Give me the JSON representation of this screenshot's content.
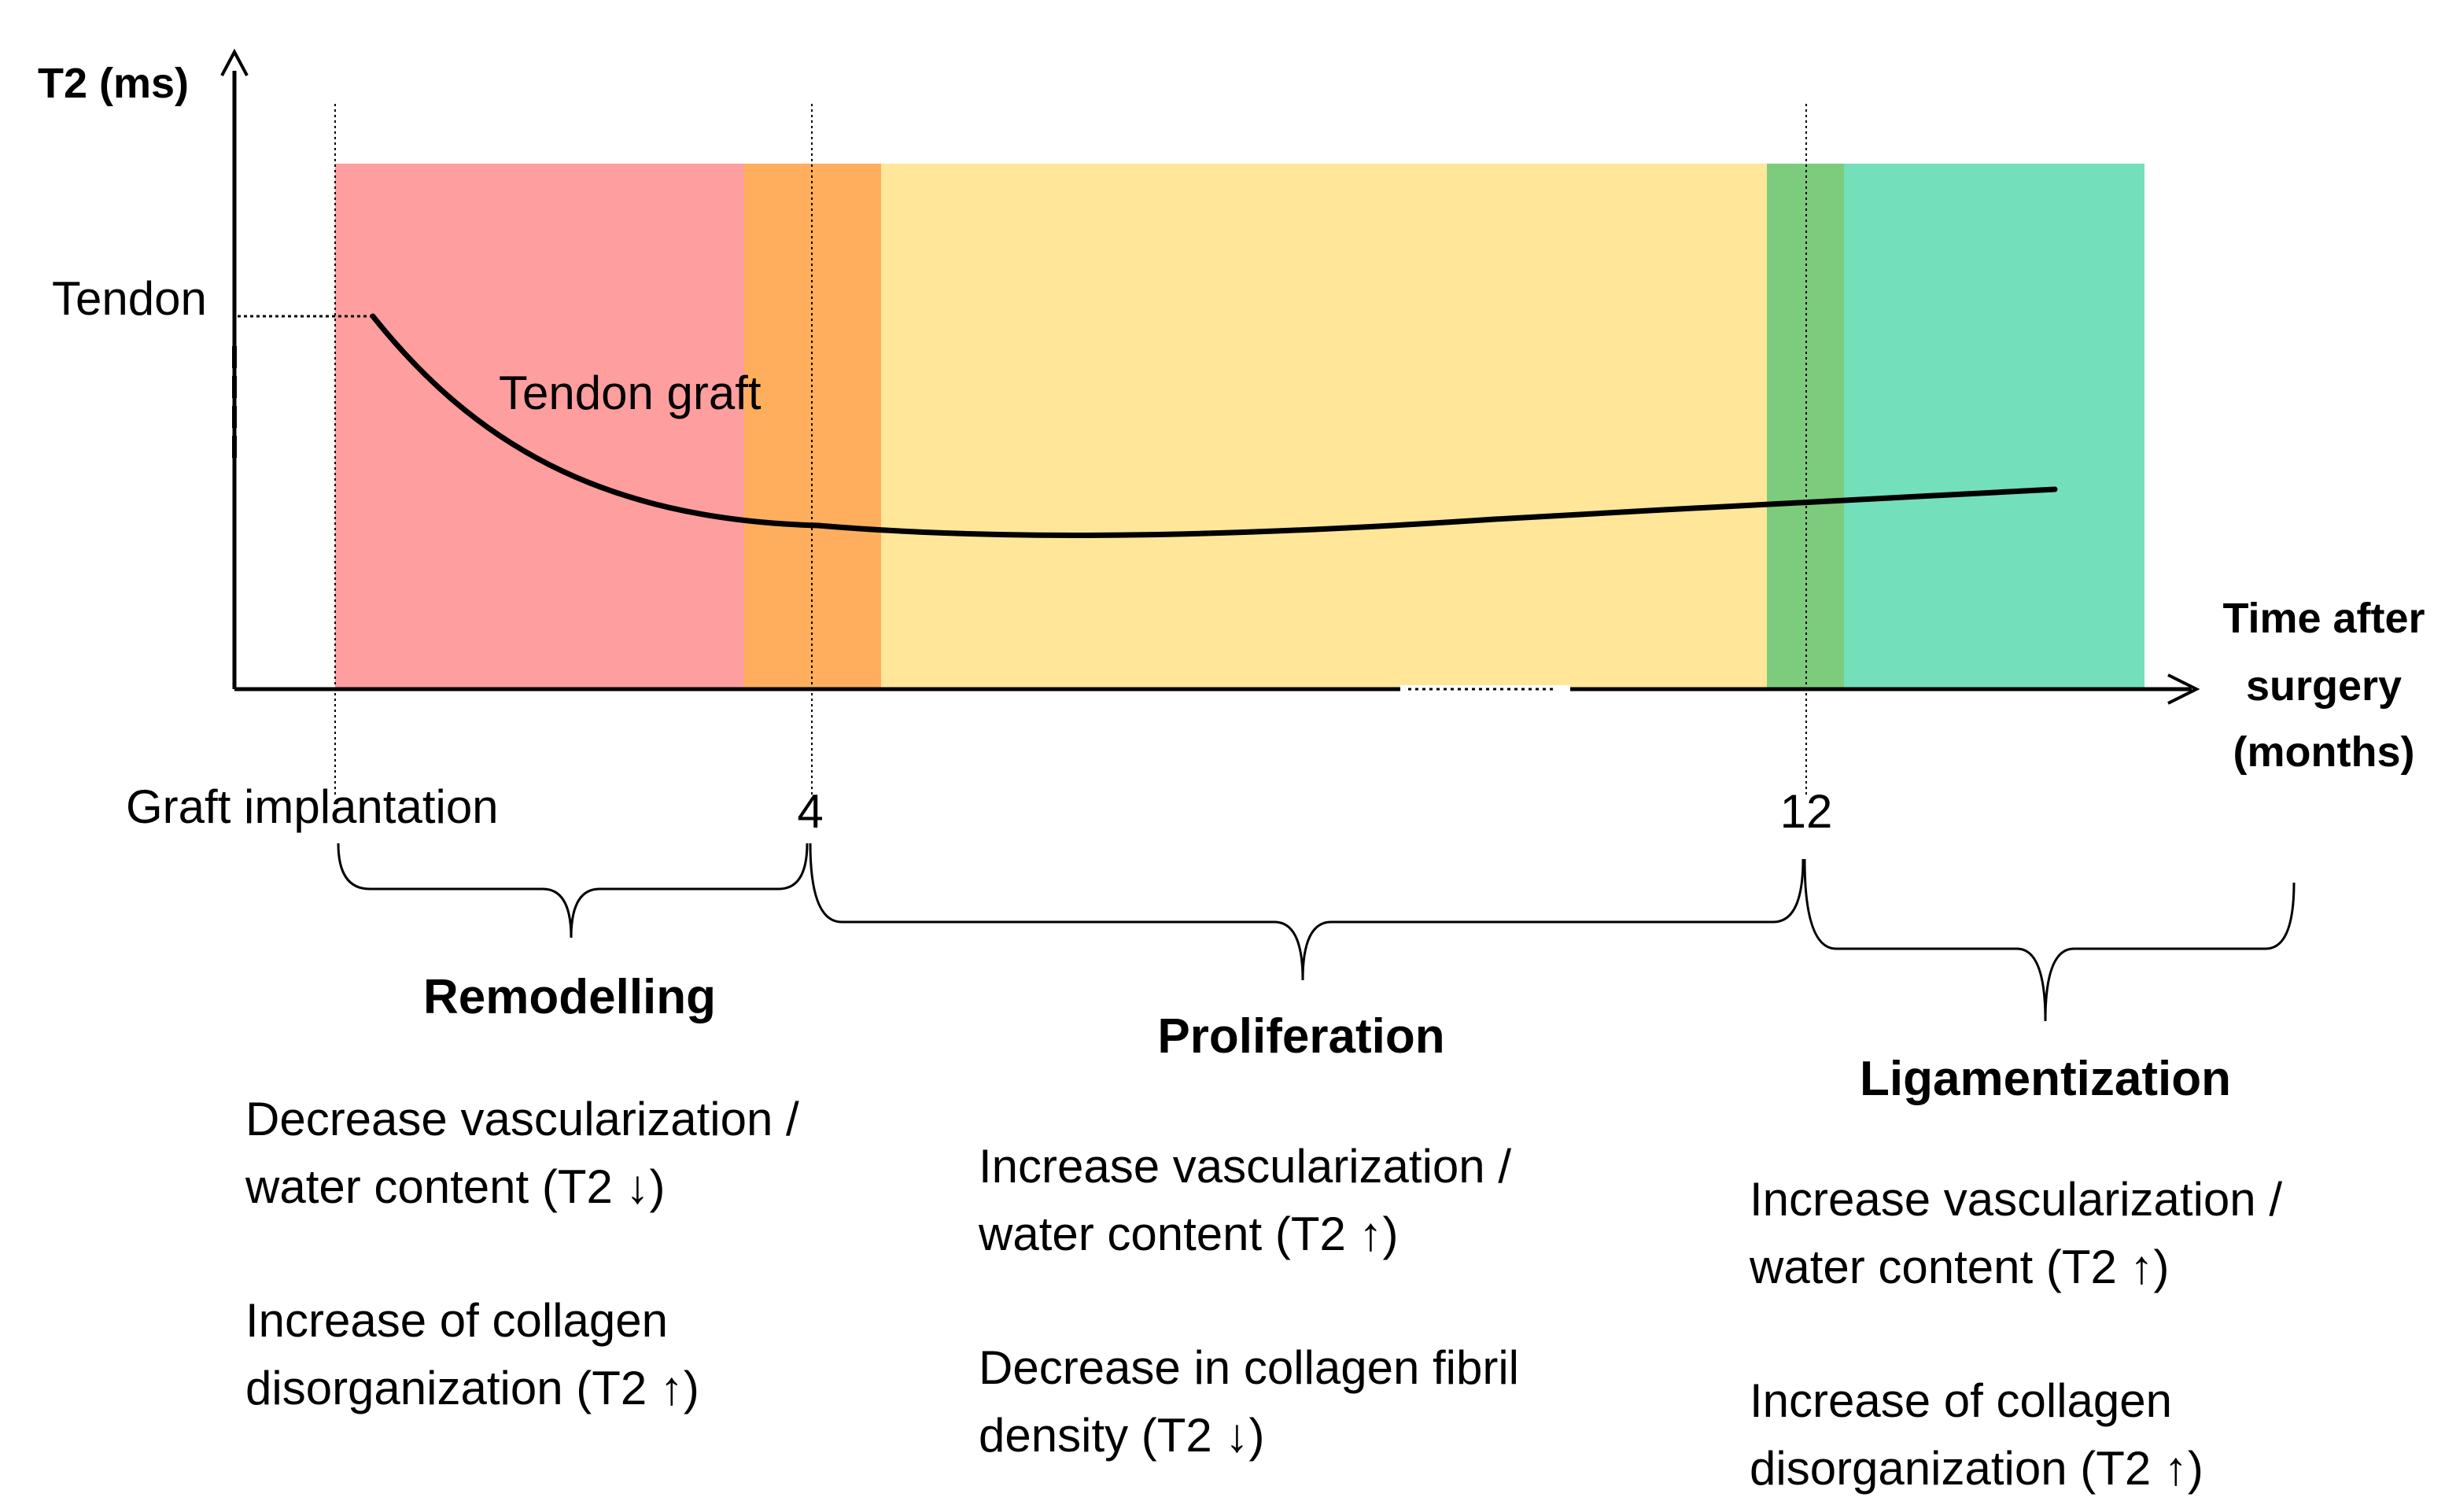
{
  "axes": {
    "y_title": "T2 (ms)",
    "y_tick_label": "Tendon",
    "x_title_lines": [
      "Time after",
      "surgery",
      "(months)"
    ]
  },
  "timeline": {
    "start_label": "Graft implantation",
    "marks": [
      "4",
      "12"
    ]
  },
  "curve_label": "Tendon graft",
  "bands": [
    {
      "color": "#ff9e9e"
    },
    {
      "color": "#ffae5e"
    },
    {
      "color": "#ffe699"
    },
    {
      "color": "#7dcc7d"
    },
    {
      "color": "#73e0bb"
    }
  ],
  "phases": {
    "remodelling": {
      "title": "Remodelling",
      "lines": [
        "Decrease vascularization /",
        "water content (T2 ↓)",
        "Increase  of collagen",
        "disorganization  (T2 ↑)"
      ]
    },
    "proliferation": {
      "title": "Proliferation",
      "lines": [
        "Increase  vascularization /",
        "water content (T2 ↑)",
        "Decrease in collagen fibril",
        "density (T2 ↓)"
      ]
    },
    "ligamentization": {
      "title": "Ligamentization",
      "lines": [
        "Increase vascularization /",
        "water content (T2 ↑)",
        "Increase  of collagen",
        "disorganization (T2 ↑)"
      ]
    }
  }
}
